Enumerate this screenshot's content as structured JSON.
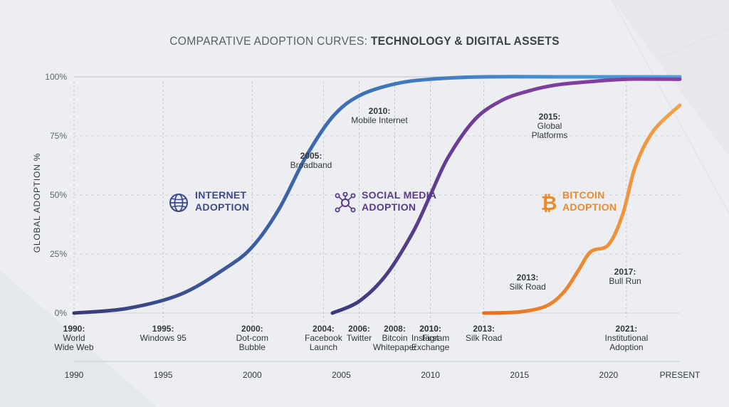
{
  "title": {
    "prefix": "COMPARATIVE ADOPTION CURVES: ",
    "bold": "TECHNOLOGY & DIGITAL ASSETS"
  },
  "colors": {
    "background": "#eceef1",
    "internet": "#3d8fd0",
    "social": "#7b3a9a",
    "bitcoin": "#ee8a2a",
    "grid": "#c9ccd2",
    "text": "#33373d"
  },
  "chart_data": {
    "type": "line",
    "title": "COMPARATIVE ADOPTION CURVES: TECHNOLOGY & DIGITAL ASSETS",
    "ylabel": "GLOBAL ADOPTION %",
    "xlabel": "",
    "xlim": [
      1990,
      2024
    ],
    "ylim": [
      0,
      100
    ],
    "y_ticks": [
      {
        "v": 0,
        "label": "0%"
      },
      {
        "v": 25,
        "label": "25%"
      },
      {
        "v": 50,
        "label": "50%"
      },
      {
        "v": 75,
        "label": "75%"
      },
      {
        "v": 100,
        "label": "100%"
      }
    ],
    "x_ticks": [
      {
        "v": 1990,
        "label": "1990"
      },
      {
        "v": 1995,
        "label": "1995"
      },
      {
        "v": 2000,
        "label": "2000"
      },
      {
        "v": 2005,
        "label": "2005"
      },
      {
        "v": 2010,
        "label": "2010"
      },
      {
        "v": 2015,
        "label": "2015"
      },
      {
        "v": 2020,
        "label": "2020"
      },
      {
        "v": 2024,
        "label": "PRESENT"
      }
    ],
    "series": [
      {
        "name": "INTERNET ADOPTION",
        "color": "#3d8fd0",
        "x": [
          1990,
          1993,
          1996,
          1998.5,
          2000,
          2001.5,
          2003,
          2004.5,
          2006,
          2008,
          2010,
          2013,
          2018,
          2024
        ],
        "y": [
          0,
          2,
          8,
          19,
          28,
          44,
          66,
          83,
          92,
          97,
          99,
          100,
          100,
          100
        ]
      },
      {
        "name": "SOCIAL MEDIA ADOPTION",
        "color": "#7b3a9a",
        "x": [
          2004.5,
          2006,
          2007.5,
          2009,
          2010,
          2011,
          2012.5,
          2014,
          2015.5,
          2017,
          2019,
          2021,
          2024
        ],
        "y": [
          0,
          5,
          16,
          34,
          50,
          66,
          82,
          90,
          94,
          96.5,
          98,
          99,
          99
        ]
      },
      {
        "name": "BITCOIN ADOPTION",
        "color": "#ee8a2a",
        "x": [
          2013,
          2015,
          2016.5,
          2017.5,
          2018.3,
          2019,
          2020,
          2020.8,
          2021.5,
          2022.5,
          2024
        ],
        "y": [
          0,
          0.5,
          3,
          9,
          18,
          26,
          29,
          42,
          62,
          77,
          88
        ]
      }
    ],
    "annotations": [
      {
        "x": 2005,
        "y": 80,
        "year": "2005:",
        "text": "Broadband"
      },
      {
        "x": 2010,
        "y": 92,
        "year": "2010:",
        "text": "Mobile Internet"
      },
      {
        "x": 2015,
        "y": 92,
        "year": "2015:",
        "text": "Global\nPlatforms"
      },
      {
        "x": 2013,
        "y": 18,
        "year": "2013:",
        "text": "Silk Road"
      },
      {
        "x": 2017,
        "y": 20,
        "year": "2017:",
        "text": "Bull Run"
      }
    ],
    "events": [
      {
        "x": 1990,
        "year": "1990:",
        "text": "World\nWide Web"
      },
      {
        "x": 1995,
        "year": "1995:",
        "text": "Windows 95"
      },
      {
        "x": 2000,
        "year": "2000:",
        "text": "Dot-com\nBubble"
      },
      {
        "x": 2004,
        "year": "2004:",
        "text": "Facebook\nLaunch"
      },
      {
        "x": 2006,
        "year": "2006:",
        "text": "Twitter"
      },
      {
        "x": 2010,
        "year": "2010:",
        "text": "Instagram"
      },
      {
        "x": 2008,
        "year": "2008:",
        "text": "Bitcoin\nWhitepaper"
      },
      {
        "x": 2010,
        "year": "2010:",
        "text": "First\nExchange"
      },
      {
        "x": 2013,
        "year": "2013:",
        "text": "Silk Road"
      },
      {
        "x": 2021,
        "year": "2021:",
        "text": "Institutional\nAdoption"
      }
    ],
    "series_labels": [
      {
        "line1": "INTERNET",
        "line2": "ADOPTION",
        "icon": "globe-icon",
        "color": "#3d4a8c"
      },
      {
        "line1": "SOCIAL MEDIA",
        "line2": "ADOPTION",
        "icon": "network-icon",
        "color": "#5a3a8c"
      },
      {
        "line1": "BITCOIN",
        "line2": "ADOPTION",
        "icon": "bitcoin-icon",
        "color": "#ee8a2a"
      }
    ]
  }
}
